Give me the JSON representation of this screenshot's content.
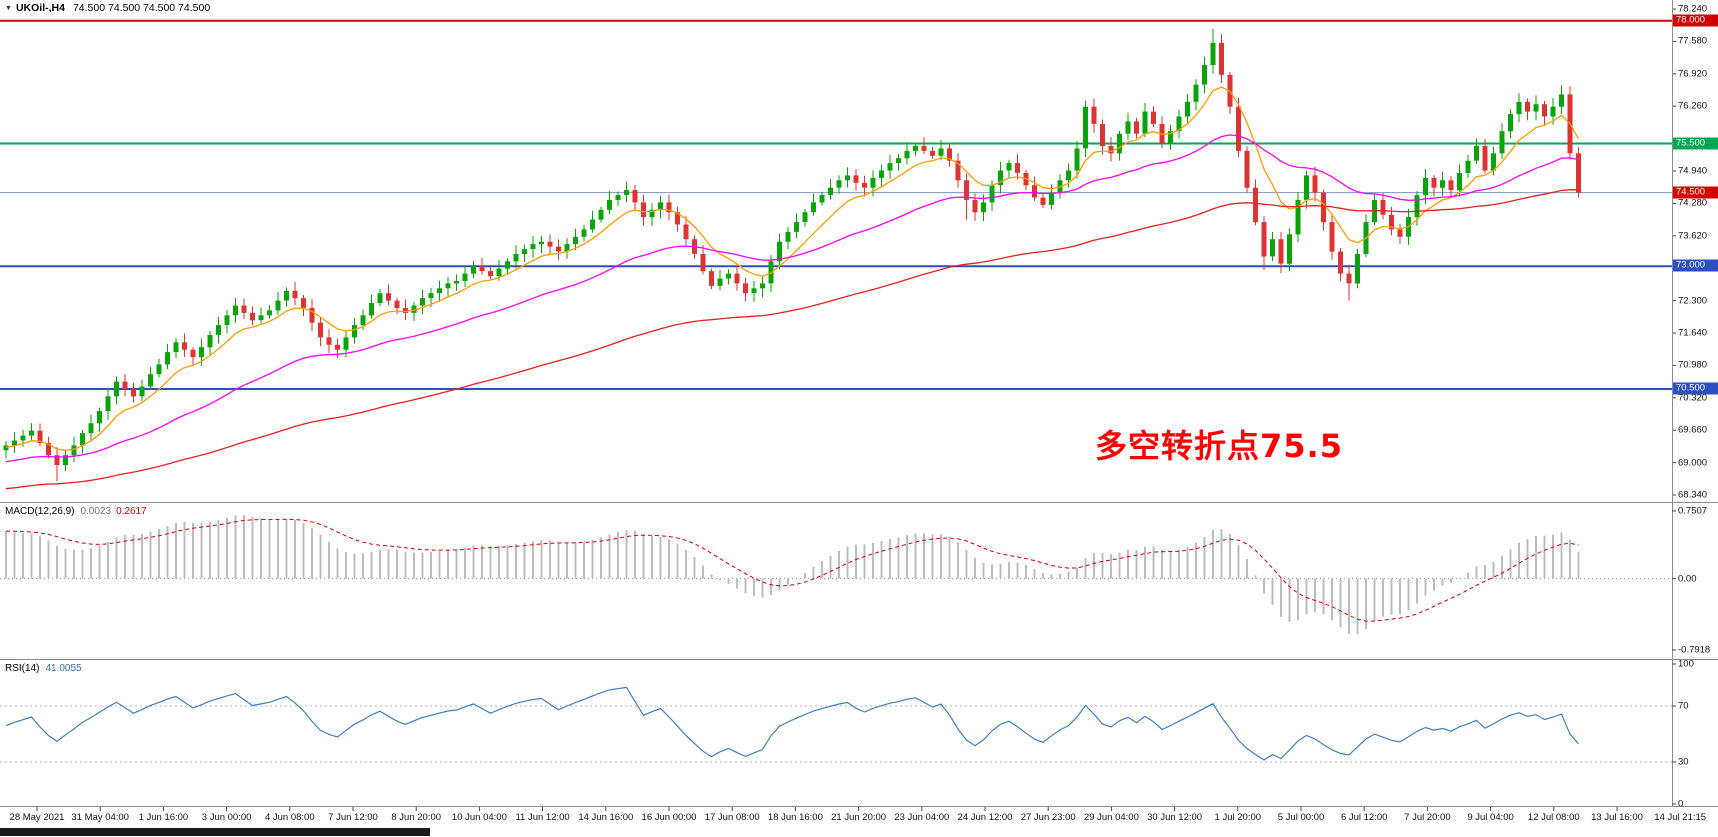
{
  "window": {
    "symbol_dropdown_icon": "▼",
    "symbol_label": "UKOil-,H4",
    "ohlc_quote": "74.500 74.500 74.500 74.500"
  },
  "annotation": {
    "text": "多空转折点75.5",
    "color": "#ff0000"
  },
  "macd_panel": {
    "title": "MACD(12,26,9)",
    "value_main": "0.0023",
    "value_signal": "0.2617",
    "axis_labels": [
      "0.7507",
      "0.00",
      "-0.7918"
    ]
  },
  "rsi_panel": {
    "title": "RSI(14)",
    "value": "41.0055",
    "axis_labels": [
      "100",
      "70",
      "30",
      "0"
    ],
    "levels": [
      70,
      30
    ]
  },
  "price_axis_labels": [
    "78.240",
    "77.580",
    "76.920",
    "76.260",
    "74.940",
    "74.280",
    "73.620",
    "72.300",
    "71.640",
    "70.980",
    "70.320",
    "69.660",
    "69.000",
    "68.340"
  ],
  "hlines": [
    {
      "price": 78.0,
      "label": "78.000",
      "color": "#d20000",
      "width": 2
    },
    {
      "price": 75.5,
      "label": "75.500",
      "color": "#00a651",
      "width": 2
    },
    {
      "price": 74.5,
      "label": "74.500",
      "color": "#d20000",
      "line_color": "#8095b8",
      "width": 1,
      "current": true
    },
    {
      "price": 73.0,
      "label": "73.000",
      "color": "#2e4fc4",
      "width": 2
    },
    {
      "price": 70.5,
      "label": "70.500",
      "color": "#2e4fc4",
      "width": 2
    }
  ],
  "time_axis_labels": [
    "28 May 2021",
    "31 May 04:00",
    "1 Jun 16:00",
    "3 Jun 00:00",
    "4 Jun 08:00",
    "7 Jun 12:00",
    "8 Jun 20:00",
    "10 Jun 04:00",
    "11 Jun 12:00",
    "14 Jun 16:00",
    "16 Jun 00:00",
    "17 Jun 08:00",
    "18 Jun 16:00",
    "21 Jun 20:00",
    "23 Jun 04:00",
    "24 Jun 12:00",
    "27 Jun 23:00",
    "29 Jun 04:00",
    "30 Jun 12:00",
    "1 Jul 20:00",
    "5 Jul 00:00",
    "6 Jul 12:00",
    "7 Jul 20:00",
    "9 Jul 04:00",
    "12 Jul 08:00",
    "13 Jul 16:00",
    "14 Jul 21:15"
  ],
  "scrollbar": {
    "color": "#1a1a1a"
  },
  "chart_data": {
    "type": "candlestick",
    "symbol": "UKOil-",
    "timeframe": "H4",
    "title": "UKOil- H4 Brent crude chart with MACD and RSI",
    "price_range": [
      68.34,
      78.24
    ],
    "first_open": 69.25,
    "closes": [
      69.35,
      69.45,
      69.55,
      69.65,
      69.4,
      69.15,
      68.95,
      69.15,
      69.35,
      69.6,
      69.8,
      70.05,
      70.35,
      70.65,
      70.5,
      70.35,
      70.55,
      70.8,
      71.0,
      71.25,
      71.45,
      71.3,
      71.15,
      71.35,
      71.6,
      71.8,
      72.0,
      72.2,
      72.05,
      71.9,
      72.0,
      72.1,
      72.3,
      72.5,
      72.35,
      72.15,
      71.85,
      71.55,
      71.4,
      71.3,
      71.55,
      71.8,
      72.0,
      72.25,
      72.45,
      72.3,
      72.15,
      72.05,
      72.2,
      72.35,
      72.45,
      72.55,
      72.65,
      72.7,
      72.85,
      73.0,
      72.9,
      72.8,
      72.95,
      73.1,
      73.25,
      73.35,
      73.45,
      73.5,
      73.4,
      73.3,
      73.45,
      73.6,
      73.75,
      73.95,
      74.15,
      74.35,
      74.45,
      74.55,
      74.3,
      74.0,
      74.15,
      74.3,
      74.1,
      73.85,
      73.55,
      73.25,
      72.9,
      72.6,
      72.75,
      72.85,
      72.65,
      72.45,
      72.55,
      72.65,
      73.1,
      73.5,
      73.7,
      73.9,
      74.1,
      74.3,
      74.45,
      74.6,
      74.75,
      74.85,
      74.7,
      74.6,
      74.8,
      74.95,
      75.1,
      75.2,
      75.35,
      75.45,
      75.35,
      75.25,
      75.4,
      75.15,
      74.75,
      74.35,
      74.1,
      74.3,
      74.65,
      74.95,
      75.1,
      74.9,
      74.65,
      74.4,
      74.25,
      74.5,
      74.75,
      74.95,
      75.4,
      76.25,
      75.9,
      75.45,
      75.3,
      75.7,
      75.95,
      75.7,
      76.15,
      75.9,
      75.5,
      75.75,
      76.05,
      76.35,
      76.7,
      77.1,
      77.55,
      76.9,
      76.25,
      75.35,
      74.6,
      73.9,
      73.2,
      73.55,
      73.05,
      73.65,
      74.35,
      74.85,
      74.5,
      73.9,
      73.3,
      72.85,
      72.65,
      73.25,
      73.9,
      74.35,
      74.05,
      73.75,
      73.6,
      74.0,
      74.45,
      74.8,
      74.6,
      74.75,
      74.55,
      74.9,
      75.15,
      75.45,
      74.95,
      75.3,
      75.75,
      76.1,
      76.35,
      76.15,
      76.3,
      76.05,
      76.25,
      76.5,
      75.3,
      74.5
    ],
    "wick_overrides": {
      "6": {
        "low": 68.62
      },
      "113": {
        "low": 73.95
      },
      "142": {
        "high": 77.84
      },
      "148": {
        "low": 72.92
      },
      "150": {
        "low": 72.86
      },
      "158": {
        "low": 72.3
      },
      "183": {
        "high": 76.69
      }
    },
    "candle_up_color": "#0aa30a",
    "candle_down_color": "#dd3333",
    "moving_averages": [
      {
        "name": "fast",
        "color": "#ff9d00",
        "k": 0.22,
        "seed": 69.3
      },
      {
        "name": "medium",
        "color": "#ff00ff",
        "k": 0.057,
        "seed": 69.0
      },
      {
        "name": "slow",
        "color": "#e82020",
        "k": 0.02,
        "seed": 68.45
      }
    ],
    "indicators": {
      "macd": {
        "fast": 12,
        "slow": 26,
        "signal": 9,
        "histogram_color": "#bcbcbc",
        "signal_color": "#d00000",
        "range": [
          -0.7918,
          0.7507
        ]
      },
      "rsi": {
        "period": 14,
        "color": "#3f7fc1",
        "range": [
          0,
          100
        ],
        "levels": [
          70,
          30
        ]
      }
    }
  }
}
